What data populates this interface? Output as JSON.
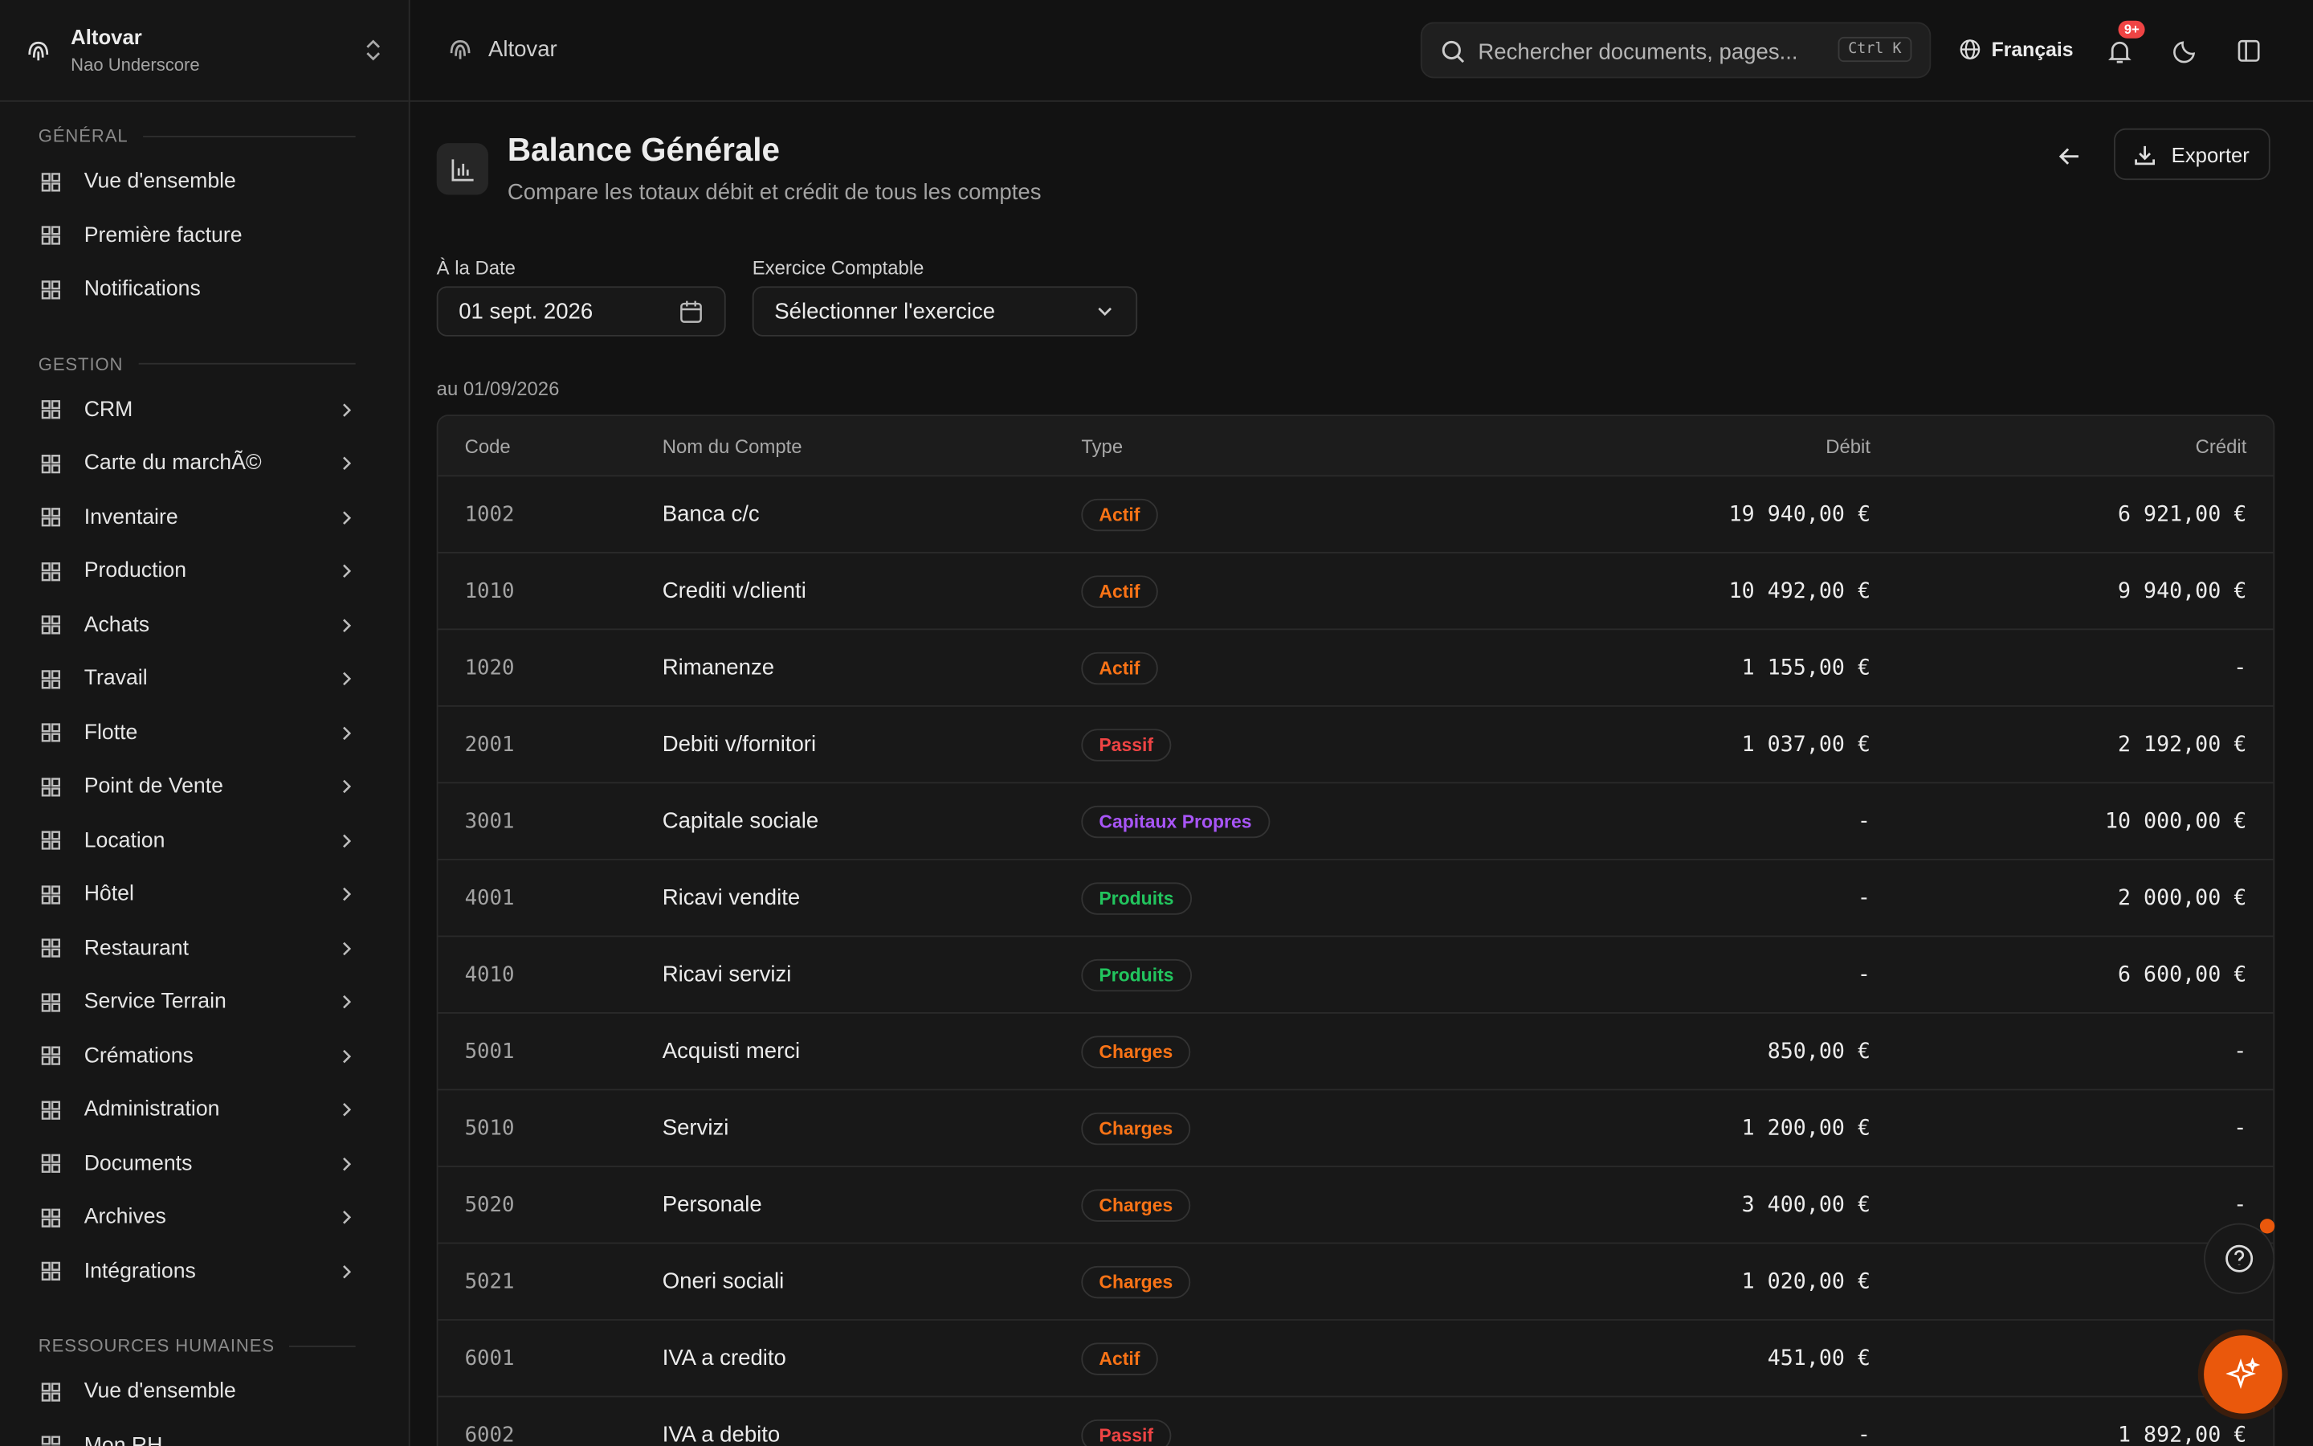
{
  "brand": {
    "name": "Altovar",
    "user": "Nao Underscore"
  },
  "topbar": {
    "breadcrumb": "Altovar",
    "search_placeholder": "Rechercher documents, pages...",
    "shortcut": "Ctrl K",
    "language": "Français",
    "notifications_badge": "9+"
  },
  "sidebar": {
    "sections": [
      {
        "title": "GÉNÉRAL",
        "items": [
          {
            "label": "Vue d'ensemble",
            "expandable": false
          },
          {
            "label": "Première facture",
            "expandable": false
          },
          {
            "label": "Notifications",
            "expandable": false
          }
        ]
      },
      {
        "title": "GESTION",
        "items": [
          {
            "label": "CRM",
            "expandable": true
          },
          {
            "label": "Carte du marchÃ©",
            "expandable": true
          },
          {
            "label": "Inventaire",
            "expandable": true
          },
          {
            "label": "Production",
            "expandable": true
          },
          {
            "label": "Achats",
            "expandable": true
          },
          {
            "label": "Travail",
            "expandable": true
          },
          {
            "label": "Flotte",
            "expandable": true
          },
          {
            "label": "Point de Vente",
            "expandable": true
          },
          {
            "label": "Location",
            "expandable": true
          },
          {
            "label": "Hôtel",
            "expandable": true
          },
          {
            "label": "Restaurant",
            "expandable": true
          },
          {
            "label": "Service Terrain",
            "expandable": true
          },
          {
            "label": "Crémations",
            "expandable": true
          },
          {
            "label": "Administration",
            "expandable": true
          },
          {
            "label": "Documents",
            "expandable": true
          },
          {
            "label": "Archives",
            "expandable": true
          },
          {
            "label": "Intégrations",
            "expandable": true
          }
        ]
      },
      {
        "title": "RESSOURCES HUMAINES",
        "items": [
          {
            "label": "Vue d'ensemble",
            "expandable": false
          },
          {
            "label": "Mon RH",
            "expandable": false
          }
        ]
      }
    ]
  },
  "page": {
    "title": "Balance Générale",
    "subtitle": "Compare les totaux débit et crédit de tous les comptes",
    "export": "Exporter",
    "filters": [
      {
        "label": "À la Date",
        "value": "01 sept. 2026"
      },
      {
        "label": "Exercice Comptable",
        "value": "Sélectionner l'exercice"
      }
    ],
    "as_of": "au 01/09/2026"
  },
  "table": {
    "columns": [
      "Code",
      "Nom du Compte",
      "Type",
      "Débit",
      "Crédit"
    ],
    "rows": [
      {
        "code": "1002",
        "name": "Banca c/c",
        "type": "Actif",
        "type_color": "#f97316",
        "debit": "19 940,00 €",
        "credit": "6 921,00 €"
      },
      {
        "code": "1010",
        "name": "Crediti v/clienti",
        "type": "Actif",
        "type_color": "#f97316",
        "debit": "10 492,00 €",
        "credit": "9 940,00 €"
      },
      {
        "code": "1020",
        "name": "Rimanenze",
        "type": "Actif",
        "type_color": "#f97316",
        "debit": "1 155,00 €",
        "credit": "-"
      },
      {
        "code": "2001",
        "name": "Debiti v/fornitori",
        "type": "Passif",
        "type_color": "#ef4444",
        "debit": "1 037,00 €",
        "credit": "2 192,00 €"
      },
      {
        "code": "3001",
        "name": "Capitale sociale",
        "type": "Capitaux Propres",
        "type_color": "#a855f7",
        "debit": "-",
        "credit": "10 000,00 €"
      },
      {
        "code": "4001",
        "name": "Ricavi vendite",
        "type": "Produits",
        "type_color": "#22c55e",
        "debit": "-",
        "credit": "2 000,00 €"
      },
      {
        "code": "4010",
        "name": "Ricavi servizi",
        "type": "Produits",
        "type_color": "#22c55e",
        "debit": "-",
        "credit": "6 600,00 €"
      },
      {
        "code": "5001",
        "name": "Acquisti merci",
        "type": "Charges",
        "type_color": "#f97316",
        "debit": "850,00 €",
        "credit": "-"
      },
      {
        "code": "5010",
        "name": "Servizi",
        "type": "Charges",
        "type_color": "#f97316",
        "debit": "1 200,00 €",
        "credit": "-"
      },
      {
        "code": "5020",
        "name": "Personale",
        "type": "Charges",
        "type_color": "#f97316",
        "debit": "3 400,00 €",
        "credit": "-"
      },
      {
        "code": "5021",
        "name": "Oneri sociali",
        "type": "Charges",
        "type_color": "#f97316",
        "debit": "1 020,00 €",
        "credit": "-"
      },
      {
        "code": "6001",
        "name": "IVA a credito",
        "type": "Actif",
        "type_color": "#f97316",
        "debit": "451,00 €",
        "credit": "-"
      },
      {
        "code": "6002",
        "name": "IVA a debito",
        "type": "Passif",
        "type_color": "#ef4444",
        "debit": "-",
        "credit": "1 892,00 €"
      }
    ]
  }
}
